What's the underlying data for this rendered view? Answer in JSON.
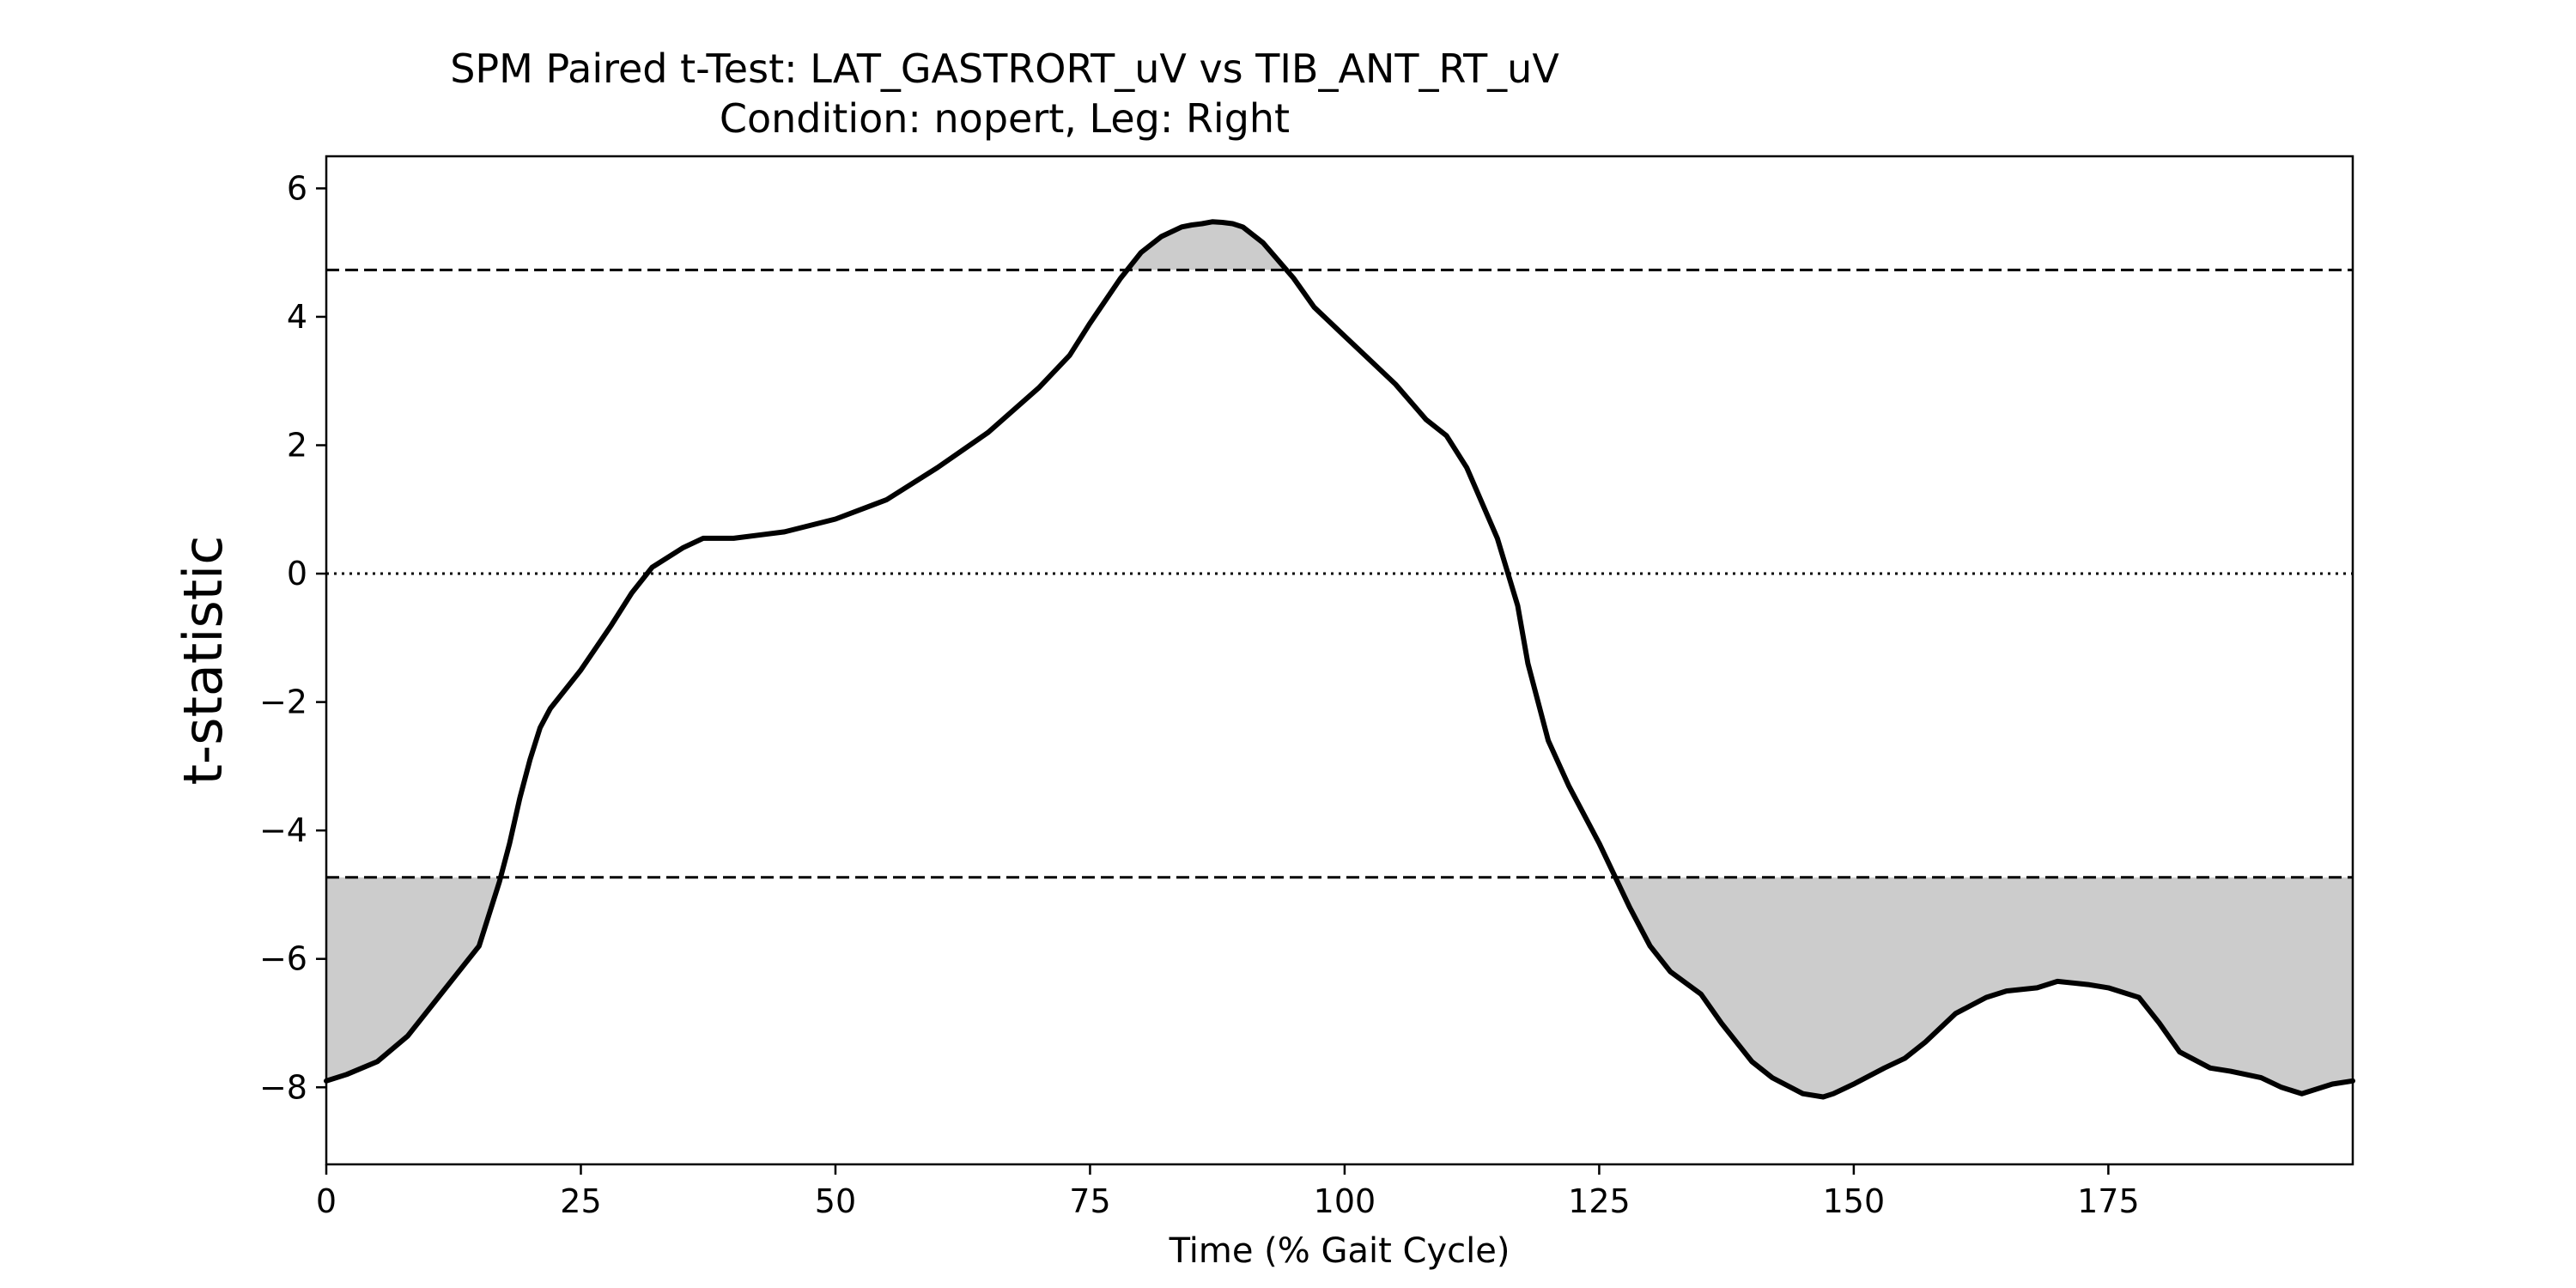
{
  "chart_data": {
    "type": "line",
    "title": "SPM Paired t-Test: LAT_GASTRORT_uV vs TIB_ANT_RT_uV",
    "subtitle": "Condition: nopert, Leg: Right",
    "xlabel": "Time (% Gait Cycle)",
    "ylabel": "t-statistic",
    "xlim": [
      0,
      199
    ],
    "ylim": [
      -9.2,
      6.5
    ],
    "xticks": [
      0,
      25,
      50,
      75,
      100,
      125,
      150,
      175
    ],
    "yticks": [
      6,
      4,
      2,
      0,
      -2,
      -4,
      -6,
      -8
    ],
    "threshold": 4.73,
    "grid": false,
    "colors": {
      "line": "#000000",
      "fill": "#cccccc",
      "threshold": "#000000",
      "zero": "#000000"
    },
    "series": [
      {
        "x": [
          0,
          2,
          5,
          8,
          10,
          12,
          15,
          17,
          18,
          19,
          20,
          21,
          22,
          25,
          28,
          30,
          32,
          35,
          37,
          40,
          45,
          50,
          55,
          60,
          65,
          70,
          73,
          75,
          78,
          80,
          82,
          84,
          85,
          86,
          87,
          88,
          89,
          90,
          92,
          95,
          97,
          100,
          102,
          105,
          108,
          110,
          112,
          115,
          117,
          118,
          120,
          122,
          125,
          128,
          130,
          132,
          135,
          137,
          140,
          142,
          145,
          147,
          148,
          150,
          153,
          155,
          157,
          160,
          163,
          165,
          168,
          170,
          173,
          175,
          178,
          180,
          182,
          185,
          187,
          190,
          192,
          194,
          195,
          197,
          199
        ],
        "y": [
          -7.9,
          -7.8,
          -7.6,
          -7.2,
          -6.8,
          -6.4,
          -5.8,
          -4.8,
          -4.2,
          -3.5,
          -2.9,
          -2.4,
          -2.1,
          -1.5,
          -0.8,
          -0.3,
          0.1,
          0.4,
          0.55,
          0.55,
          0.65,
          0.85,
          1.15,
          1.65,
          2.2,
          2.9,
          3.4,
          3.9,
          4.6,
          5.0,
          5.25,
          5.4,
          5.43,
          5.45,
          5.48,
          5.47,
          5.45,
          5.4,
          5.15,
          4.6,
          4.15,
          3.7,
          3.4,
          2.95,
          2.4,
          2.15,
          1.65,
          0.55,
          -0.5,
          -1.4,
          -2.6,
          -3.3,
          -4.2,
          -5.2,
          -5.8,
          -6.2,
          -6.55,
          -7.0,
          -7.6,
          -7.85,
          -8.1,
          -8.15,
          -8.1,
          -7.95,
          -7.7,
          -7.55,
          -7.3,
          -6.85,
          -6.6,
          -6.5,
          -6.45,
          -6.35,
          -6.4,
          -6.45,
          -6.6,
          -7.0,
          -7.45,
          -7.7,
          -7.75,
          -7.85,
          -8.0,
          -8.1,
          -8.05,
          -7.95,
          -7.9
        ]
      }
    ]
  }
}
